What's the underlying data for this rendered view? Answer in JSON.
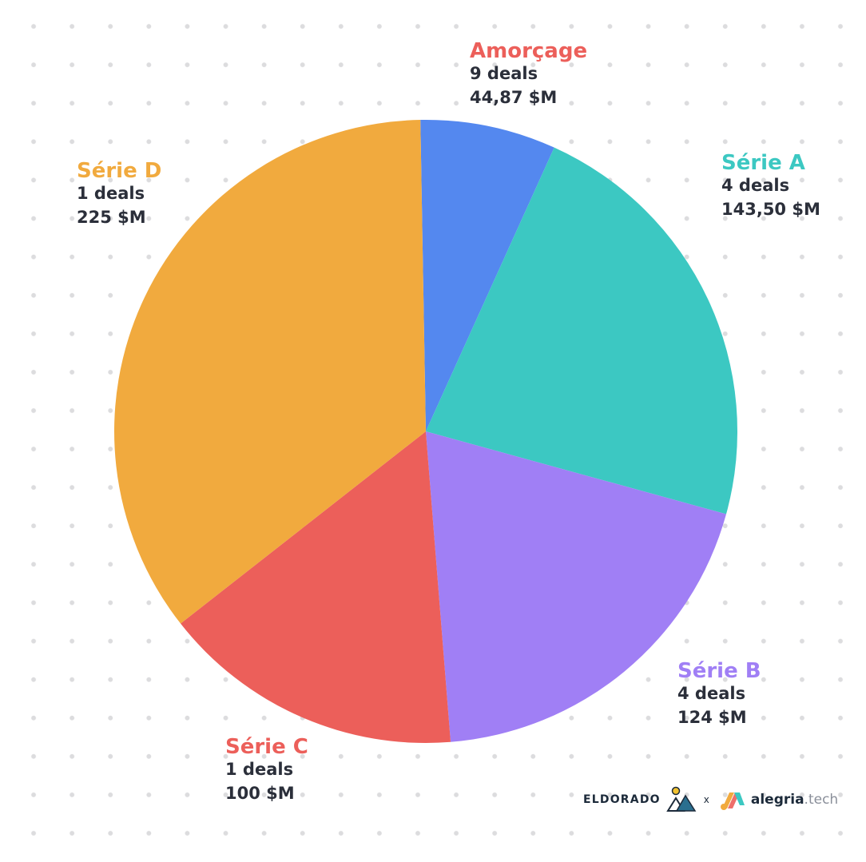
{
  "chart_data": {
    "type": "pie",
    "start_angle_deg": -1,
    "slices": [
      {
        "name": "Amorçage",
        "deals_text": "9 deals",
        "value_text": "44,87 $M",
        "value": 44.87,
        "color": "#5488ef"
      },
      {
        "name": "Série A",
        "deals_text": "4 deals",
        "value_text": "143,50 $M",
        "value": 143.5,
        "color": "#3cc8c2"
      },
      {
        "name": "Série B",
        "deals_text": "4 deals",
        "value_text": "124 $M",
        "value": 124,
        "color": "#a07ff5"
      },
      {
        "name": "Série C",
        "deals_text": "1 deals",
        "value_text": "100 $M",
        "value": 100,
        "color": "#ec5f5a"
      },
      {
        "name": "Série D",
        "deals_text": "1 deals",
        "value_text": "225 $M",
        "value": 225,
        "color": "#f1aa3e"
      }
    ]
  },
  "footer": {
    "eldorado": "ELDORADO",
    "separator": "x",
    "alegria": "alegria",
    "alegria_tld": ".tech"
  }
}
